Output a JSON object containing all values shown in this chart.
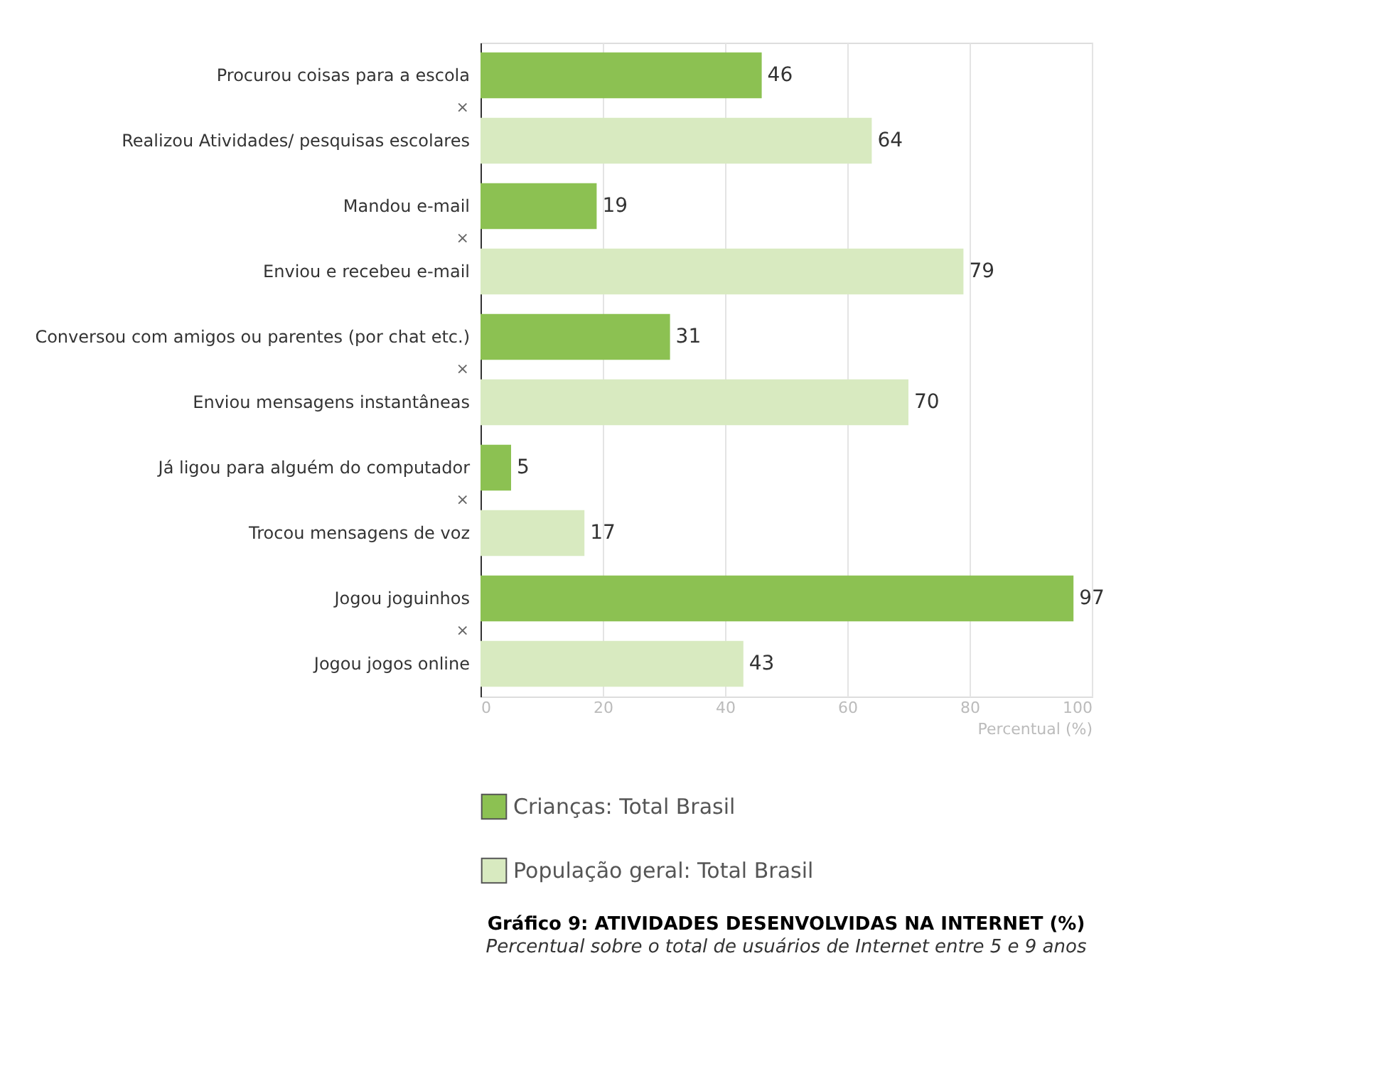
{
  "chart_data": {
    "type": "bar",
    "orientation": "horizontal",
    "title": "Gráfico 9: ATIVIDADES DESENVOLVIDAS NA INTERNET (%)",
    "subtitle": "Percentual sobre o total de usuários de Internet entre 5 e 9 anos",
    "xlabel": "Percentual (%)",
    "categories": [
      "Procurou coisas para a escola",
      "Realizou Atividades/ pesquisas escolares",
      "Mandou e-mail",
      "Enviou e recebeu e-mail",
      "Conversou com amigos  ou parentes (por chat etc.)",
      "Enviou mensagens instantâneas",
      "Já ligou para alguém do computador",
      "Trocou mensagens de voz",
      "Jogou joguinhos",
      "Jogou jogos online"
    ],
    "series": [
      {
        "name": "Crianças: Total Brasil",
        "color": "#8cc152",
        "values": [
          46,
          null,
          19,
          null,
          31,
          null,
          5,
          null,
          97,
          null
        ]
      },
      {
        "name": "População geral: Total Brasil",
        "color": "#d8eac0",
        "values": [
          null,
          64,
          null,
          79,
          null,
          70,
          null,
          17,
          null,
          43
        ]
      }
    ],
    "annotations": [
      "×",
      "×",
      "×",
      "×",
      "×"
    ],
    "xlim": [
      0,
      100
    ],
    "xticks": [
      0,
      20,
      40,
      60,
      80,
      100
    ],
    "grid": "x",
    "legend": "bottom left",
    "data_labels": true
  }
}
